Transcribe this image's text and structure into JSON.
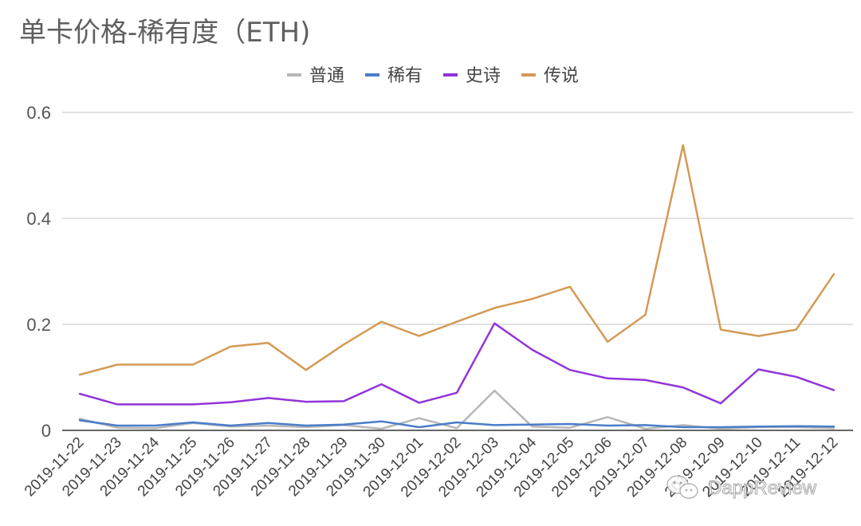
{
  "chart_data": {
    "type": "line",
    "title": "单卡价格-稀有度（ETH)",
    "xlabel": "",
    "ylabel": "",
    "ylim": [
      0,
      0.6
    ],
    "yticks": [
      "0",
      "0.2",
      "0.4",
      "0.6"
    ],
    "ytick_values": [
      0,
      0.2,
      0.4,
      0.6
    ],
    "grid": true,
    "legend_position": "top",
    "categories": [
      "2019-11-22",
      "2019-11-23",
      "2019-11-24",
      "2019-11-25",
      "2019-11-26",
      "2019-11-27",
      "2019-11-28",
      "2019-11-29",
      "2019-11-30",
      "2019-12-01",
      "2019-12-02",
      "2019-12-03",
      "2019-12-04",
      "2019-12-05",
      "2019-12-06",
      "2019-12-07",
      "2019-12-08",
      "2019-12-09",
      "2019-12-10",
      "2019-12-11",
      "2019-12-12"
    ],
    "series": [
      {
        "name": "普通",
        "color": "#b7b7b7",
        "values": [
          0.022,
          0.005,
          0.004,
          0.014,
          0.007,
          0.009,
          0.006,
          0.01,
          0.003,
          0.023,
          0.004,
          0.075,
          0.007,
          0.005,
          0.025,
          0.003,
          0.01,
          0.003,
          0.006,
          0.006,
          0.004
        ]
      },
      {
        "name": "稀有",
        "color": "#4a7dc9",
        "values": [
          0.019,
          0.009,
          0.009,
          0.015,
          0.009,
          0.014,
          0.009,
          0.011,
          0.017,
          0.006,
          0.015,
          0.01,
          0.011,
          0.012,
          0.009,
          0.01,
          0.006,
          0.006,
          0.007,
          0.008,
          0.007
        ]
      },
      {
        "name": "史诗",
        "color": "#9134d9",
        "values": [
          0.069,
          0.049,
          0.049,
          0.049,
          0.053,
          0.061,
          0.054,
          0.055,
          0.087,
          0.052,
          0.071,
          0.202,
          0.152,
          0.114,
          0.098,
          0.095,
          0.081,
          0.051,
          0.115,
          0.101,
          0.076
        ]
      },
      {
        "name": "传说",
        "color": "#d49a55",
        "values": [
          0.105,
          0.124,
          0.124,
          0.124,
          0.158,
          0.165,
          0.114,
          0.162,
          0.205,
          0.178,
          0.205,
          0.231,
          0.248,
          0.271,
          0.167,
          0.218,
          0.538,
          0.19,
          0.178,
          0.19,
          0.295
        ]
      }
    ]
  },
  "watermark": {
    "text": "DappReview",
    "icon": "wechat-icon"
  }
}
